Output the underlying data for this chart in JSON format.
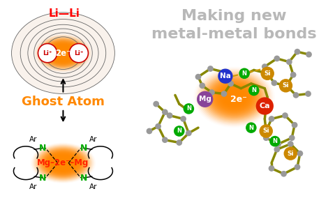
{
  "title_line1": "Making new",
  "title_line2": "metal-metal bonds",
  "title_color": "#b8b8b8",
  "ghost_atom_label": "Ghost Atom",
  "ghost_atom_color": "#ff8800",
  "li_li_label": "Li—Li",
  "li_label": "Li⁺",
  "two_e_label": "2e⁻",
  "mg_2e_mg_label": "Mg–2e⁻–Mg",
  "N_color": "#00aa00",
  "Li_color": "#ff0000",
  "orange_color": "#ff8800",
  "bg_color": "#ffffff",
  "na_color": "#2233cc",
  "ca_color": "#dd2200",
  "mg2_color": "#884499",
  "si_color": "#cc8800",
  "bond_color": "#888800",
  "gray_atom_color": "#999999",
  "black": "#111111",
  "white": "#ffffff",
  "n_mol_color": "#00aa00"
}
